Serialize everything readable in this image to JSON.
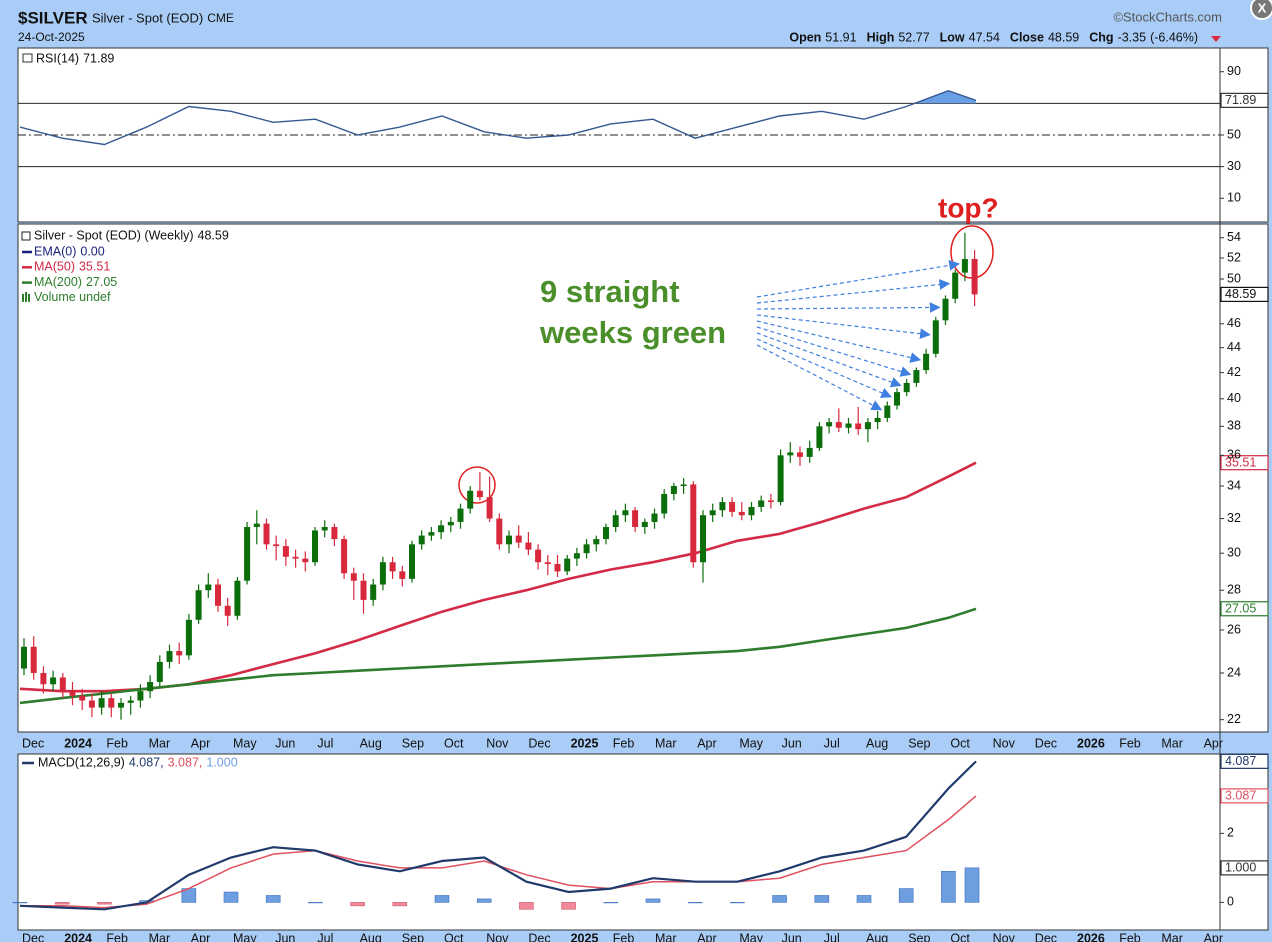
{
  "header": {
    "symbol": "$SILVER",
    "name": "Silver - Spot (EOD)",
    "exchange": "CME",
    "date": "24-Oct-2025",
    "source": "©StockCharts.com",
    "quote": [
      {
        "label": "Open",
        "value": 51.91
      },
      {
        "label": "High",
        "value": 52.77
      },
      {
        "label": "Low",
        "value": 47.54
      },
      {
        "label": "Close",
        "value": 48.59
      },
      {
        "label": "Chg",
        "value": -3.35,
        "pct": {
          "value": -6.46,
          "label": "(-6.46%)"
        }
      }
    ]
  },
  "x_axis": {
    "categories": [
      "Dec",
      "2024",
      "Feb",
      "Mar",
      "Apr",
      "May",
      "Jun",
      "Jul",
      "Aug",
      "Sep",
      "Oct",
      "Nov",
      "Dec",
      "2025",
      "Feb",
      "Mar",
      "Apr",
      "May",
      "Jun",
      "Jul",
      "Aug",
      "Sep",
      "Oct",
      "Nov",
      "Dec",
      "2026",
      "Feb",
      "Mar",
      "Apr"
    ]
  },
  "chart_data": [
    {
      "type": "line",
      "name": "RSI(14)",
      "last": 71.89,
      "color": "#34588f",
      "fill_color": "#6a9fe6",
      "ylim": [
        -5,
        105
      ],
      "yticks": [
        10,
        30,
        50,
        90
      ],
      "levels": [
        {
          "value": 30,
          "style": "solid"
        },
        {
          "value": 50,
          "style": "dashdot"
        },
        {
          "value": 70,
          "style": "solid"
        }
      ],
      "values": [
        55,
        48,
        44,
        55,
        68,
        65,
        58,
        60,
        50,
        55,
        62,
        52,
        48,
        50,
        57,
        60,
        48,
        55,
        62,
        65,
        60,
        68,
        78,
        null,
        null,
        null,
        null,
        null,
        null
      ]
    },
    {
      "type": "candlestick",
      "title": "Silver - Spot (EOD) (Weekly)",
      "last": 48.59,
      "log": true,
      "up_color": "#0b6e0b",
      "down_color": "#d8283b",
      "ylim": [
        21.5,
        55.4
      ],
      "yticks": [
        22,
        24,
        26,
        28,
        30,
        32,
        34,
        36,
        38,
        40,
        42,
        44,
        46,
        50,
        52,
        54
      ],
      "candles": [
        [
          24.2,
          25.6,
          23.9,
          25.2
        ],
        [
          25.2,
          25.7,
          23.7,
          24.0
        ],
        [
          24.0,
          24.3,
          23.1,
          23.5
        ],
        [
          23.5,
          24.1,
          23.2,
          23.8
        ],
        [
          23.8,
          24.0,
          22.9,
          23.2
        ],
        [
          23.2,
          23.6,
          22.6,
          23.0
        ],
        [
          23.0,
          23.3,
          22.4,
          22.8
        ],
        [
          22.8,
          23.1,
          22.1,
          22.5
        ],
        [
          22.5,
          23.2,
          22.2,
          22.9
        ],
        [
          22.9,
          23.1,
          22.1,
          22.5
        ],
        [
          22.5,
          22.9,
          22.0,
          22.7
        ],
        [
          22.7,
          23.0,
          22.2,
          22.8
        ],
        [
          22.8,
          23.5,
          22.5,
          23.2
        ],
        [
          23.2,
          23.9,
          22.9,
          23.6
        ],
        [
          23.6,
          24.8,
          23.4,
          24.5
        ],
        [
          24.5,
          25.3,
          24.2,
          25.0
        ],
        [
          25.0,
          25.4,
          24.4,
          24.8
        ],
        [
          24.8,
          26.8,
          24.6,
          26.5
        ],
        [
          26.5,
          28.3,
          26.3,
          28.0
        ],
        [
          28.0,
          28.9,
          27.6,
          28.3
        ],
        [
          28.3,
          28.6,
          26.9,
          27.2
        ],
        [
          27.2,
          27.6,
          26.2,
          26.7
        ],
        [
          26.7,
          28.7,
          26.5,
          28.5
        ],
        [
          28.5,
          31.8,
          28.3,
          31.5
        ],
        [
          31.5,
          32.5,
          30.5,
          31.7
        ],
        [
          31.7,
          32.0,
          30.2,
          30.5
        ],
        [
          30.5,
          31.0,
          29.6,
          30.4
        ],
        [
          30.4,
          30.8,
          29.3,
          29.8
        ],
        [
          29.8,
          30.2,
          29.2,
          29.7
        ],
        [
          29.7,
          30.1,
          29.0,
          29.5
        ],
        [
          29.5,
          31.5,
          29.3,
          31.3
        ],
        [
          31.3,
          31.9,
          30.9,
          31.5
        ],
        [
          31.5,
          31.7,
          30.4,
          30.8
        ],
        [
          30.8,
          31.0,
          28.6,
          28.9
        ],
        [
          28.9,
          29.2,
          27.5,
          28.5
        ],
        [
          28.5,
          28.9,
          26.8,
          27.5
        ],
        [
          27.5,
          28.6,
          27.2,
          28.3
        ],
        [
          28.3,
          29.8,
          28.0,
          29.5
        ],
        [
          29.5,
          29.8,
          28.6,
          29.0
        ],
        [
          29.0,
          29.3,
          28.2,
          28.6
        ],
        [
          28.6,
          30.7,
          28.4,
          30.5
        ],
        [
          30.5,
          31.3,
          30.2,
          31.0
        ],
        [
          31.0,
          31.5,
          30.7,
          31.2
        ],
        [
          31.2,
          31.9,
          30.8,
          31.6
        ],
        [
          31.6,
          32.1,
          31.2,
          31.8
        ],
        [
          31.8,
          32.9,
          31.4,
          32.6
        ],
        [
          32.6,
          34.0,
          32.3,
          33.7
        ],
        [
          33.7,
          34.9,
          33.1,
          33.3
        ],
        [
          33.3,
          34.6,
          31.8,
          32.0
        ],
        [
          32.0,
          32.3,
          30.2,
          30.5
        ],
        [
          30.5,
          31.3,
          30.0,
          31.0
        ],
        [
          31.0,
          31.6,
          30.3,
          30.6
        ],
        [
          30.6,
          31.2,
          29.9,
          30.2
        ],
        [
          30.2,
          30.5,
          29.1,
          29.5
        ],
        [
          29.5,
          29.9,
          28.8,
          29.4
        ],
        [
          29.4,
          29.9,
          28.7,
          29.0
        ],
        [
          29.0,
          29.9,
          28.8,
          29.7
        ],
        [
          29.7,
          30.3,
          29.3,
          30.0
        ],
        [
          30.0,
          30.8,
          29.7,
          30.5
        ],
        [
          30.5,
          31.0,
          30.1,
          30.8
        ],
        [
          30.8,
          31.7,
          30.5,
          31.5
        ],
        [
          31.5,
          32.5,
          31.2,
          32.2
        ],
        [
          32.2,
          32.9,
          31.8,
          32.5
        ],
        [
          32.5,
          32.7,
          31.2,
          31.5
        ],
        [
          31.5,
          32.0,
          31.1,
          31.8
        ],
        [
          31.8,
          32.6,
          31.4,
          32.3
        ],
        [
          32.3,
          33.8,
          32.0,
          33.5
        ],
        [
          33.5,
          34.2,
          33.1,
          34.0
        ],
        [
          34.0,
          34.5,
          33.5,
          34.1
        ],
        [
          34.1,
          34.3,
          29.2,
          29.5
        ],
        [
          29.5,
          32.5,
          28.4,
          32.2
        ],
        [
          32.2,
          32.9,
          31.8,
          32.5
        ],
        [
          32.5,
          33.3,
          32.1,
          33.0
        ],
        [
          33.0,
          33.3,
          32.1,
          32.4
        ],
        [
          32.4,
          33.0,
          31.9,
          32.2
        ],
        [
          32.2,
          33.0,
          31.9,
          32.7
        ],
        [
          32.7,
          33.4,
          32.4,
          33.1
        ],
        [
          33.1,
          33.5,
          32.6,
          33.0
        ],
        [
          33.0,
          36.4,
          32.8,
          36.0
        ],
        [
          36.0,
          36.9,
          35.5,
          36.2
        ],
        [
          36.2,
          36.6,
          35.3,
          35.9
        ],
        [
          35.9,
          37.0,
          35.5,
          36.5
        ],
        [
          36.5,
          38.3,
          36.3,
          38.0
        ],
        [
          38.0,
          38.6,
          37.5,
          38.3
        ],
        [
          38.3,
          39.3,
          37.6,
          37.9
        ],
        [
          37.9,
          38.6,
          37.5,
          38.2
        ],
        [
          38.2,
          39.4,
          37.4,
          37.8
        ],
        [
          37.8,
          38.6,
          36.9,
          38.3
        ],
        [
          38.3,
          39.1,
          37.8,
          38.6
        ],
        [
          38.6,
          39.8,
          38.3,
          39.5
        ],
        [
          39.5,
          40.8,
          39.2,
          40.5
        ],
        [
          40.5,
          41.5,
          40.2,
          41.2
        ],
        [
          41.2,
          42.4,
          40.9,
          42.2
        ],
        [
          42.2,
          43.9,
          41.9,
          43.5
        ],
        [
          43.5,
          46.6,
          43.2,
          46.3
        ],
        [
          46.3,
          48.5,
          45.9,
          48.2
        ],
        [
          48.2,
          50.9,
          47.8,
          50.6
        ],
        [
          50.6,
          54.5,
          49.8,
          51.9
        ],
        [
          51.91,
          52.77,
          47.54,
          48.59
        ]
      ],
      "series": [
        {
          "name": "EMA(0)",
          "last": {
            "value": 0,
            "label": "0.00"
          },
          "color": "#1a237e"
        },
        {
          "name": "MA(50)",
          "last": 35.51,
          "color": "#d42a45",
          "values": [
            23.3,
            23.2,
            23.2,
            23.3,
            23.5,
            23.9,
            24.4,
            24.9,
            25.5,
            26.2,
            26.9,
            27.5,
            28.0,
            28.6,
            29.1,
            29.5,
            30.0,
            30.7,
            31.1,
            31.8,
            32.6,
            33.3,
            34.6,
            null,
            null,
            null,
            null,
            null,
            null
          ]
        },
        {
          "name": "MA(200)",
          "last": 27.05,
          "color": "#2d7d2d",
          "values": [
            22.7,
            22.9,
            23.1,
            23.3,
            23.5,
            23.7,
            23.9,
            24.0,
            24.1,
            24.2,
            24.3,
            24.4,
            24.5,
            24.6,
            24.7,
            24.8,
            24.9,
            25.0,
            25.2,
            25.5,
            25.8,
            26.1,
            26.6,
            null,
            null,
            null,
            null,
            null,
            null
          ]
        },
        {
          "name": "Volume undef",
          "color": "#2d7d2d"
        }
      ],
      "annotations": [
        "9 straight",
        "weeks green",
        "top?"
      ]
    },
    {
      "type": "macd",
      "name": "MACD(12,26,9)",
      "ylim": [
        -0.8,
        4.3
      ],
      "yticks": [
        0,
        2
      ],
      "series": [
        {
          "name": "MACD",
          "color": "#1f3a6b",
          "last": {
            "value": 4.087,
            "label": "4.087,"
          },
          "values": [
            -0.1,
            -0.15,
            -0.2,
            0,
            0.8,
            1.3,
            1.6,
            1.5,
            1.1,
            0.9,
            1.2,
            1.3,
            0.6,
            0.3,
            0.4,
            0.7,
            0.6,
            0.6,
            0.9,
            1.3,
            1.5,
            1.9,
            3.3,
            null,
            null,
            null,
            null,
            null,
            null
          ]
        },
        {
          "name": "Signal",
          "color": "#e0505f",
          "last": {
            "value": 3.087,
            "label": "3.087,"
          },
          "values": [
            -0.1,
            -0.1,
            -0.15,
            -0.05,
            0.4,
            1.0,
            1.4,
            1.5,
            1.2,
            1.0,
            1.0,
            1.2,
            0.8,
            0.5,
            0.4,
            0.6,
            0.6,
            0.6,
            0.7,
            1.1,
            1.3,
            1.5,
            2.4,
            null,
            null,
            null,
            null,
            null,
            null
          ]
        },
        {
          "name": "Histogram",
          "color": "#6e9ee0",
          "negative_color": "#f08a9a",
          "last": {
            "value": 1,
            "label": "1.000"
          },
          "values": [
            0,
            -0.05,
            -0.05,
            0.05,
            0.4,
            0.3,
            0.2,
            0,
            -0.1,
            -0.1,
            0.2,
            0.1,
            -0.2,
            -0.2,
            0,
            0.1,
            0,
            0,
            0.2,
            0.2,
            0.2,
            0.4,
            0.9,
            null,
            null,
            null,
            null,
            null,
            null
          ]
        }
      ]
    }
  ]
}
